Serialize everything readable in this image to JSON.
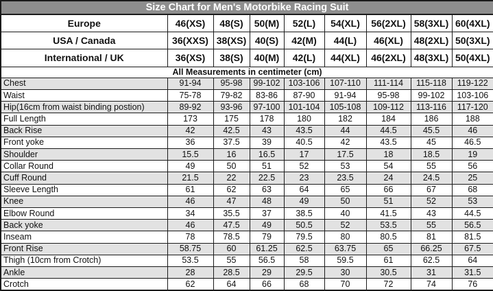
{
  "colors": {
    "title_bg": "#8e8e8e",
    "title_text": "#ffffff",
    "row_shaded": "#e2e2e2",
    "border": "#1b1b1b"
  },
  "chart_data": {
    "type": "table",
    "title": "Size Chart for Men's Motorbike Racing Suit",
    "note": "All Measurements in centimeter (cm)",
    "columns_after_label": 8,
    "size_header_rows": [
      {
        "label": "Europe",
        "values": [
          "46(XS)",
          "48(S)",
          "50(M)",
          "52(L)",
          "54(XL)",
          "56(2XL)",
          "58(3XL)",
          "60(4XL)"
        ]
      },
      {
        "label": "USA / Canada",
        "values": [
          "36(XXS)",
          "38(XS)",
          "40(S)",
          "42(M)",
          "44(L)",
          "46(XL)",
          "48(2XL)",
          "50(3XL)"
        ]
      },
      {
        "label": "International / UK",
        "values": [
          "36(XS)",
          "38(S)",
          "40(M)",
          "42(L)",
          "44(XL)",
          "46(2XL)",
          "48(3XL)",
          "50(4XL)"
        ]
      }
    ],
    "measurement_rows": [
      {
        "label": "Chest",
        "values": [
          "91-94",
          "95-98",
          "99-102",
          "103-106",
          "107-110",
          "111-114",
          "115-118",
          "119-122"
        ]
      },
      {
        "label": "Waist",
        "values": [
          "75-78",
          "79-82",
          "83-86",
          "87-90",
          "91-94",
          "95-98",
          "99-102",
          "103-106"
        ]
      },
      {
        "label": "Hip(16cm from waist binding postion)",
        "values": [
          "89-92",
          "93-96",
          "97-100",
          "101-104",
          "105-108",
          "109-112",
          "113-116",
          "117-120"
        ]
      },
      {
        "label": "Full Length",
        "values": [
          "173",
          "175",
          "178",
          "180",
          "182",
          "184",
          "186",
          "188"
        ]
      },
      {
        "label": "Back Rise",
        "values": [
          "42",
          "42.5",
          "43",
          "43.5",
          "44",
          "44.5",
          "45.5",
          "46"
        ]
      },
      {
        "label": "Front yoke",
        "values": [
          "36",
          "37.5",
          "39",
          "40.5",
          "42",
          "43.5",
          "45",
          "46.5"
        ]
      },
      {
        "label": "Shoulder",
        "values": [
          "15.5",
          "16",
          "16.5",
          "17",
          "17.5",
          "18",
          "18.5",
          "19"
        ]
      },
      {
        "label": "Collar Round",
        "values": [
          "49",
          "50",
          "51",
          "52",
          "53",
          "54",
          "55",
          "56"
        ]
      },
      {
        "label": "Cuff Round",
        "values": [
          "21.5",
          "22",
          "22.5",
          "23",
          "23.5",
          "24",
          "24.5",
          "25"
        ]
      },
      {
        "label": "Sleeve Length",
        "values": [
          "61",
          "62",
          "63",
          "64",
          "65",
          "66",
          "67",
          "68"
        ]
      },
      {
        "label": "Knee",
        "values": [
          "46",
          "47",
          "48",
          "49",
          "50",
          "51",
          "52",
          "53"
        ]
      },
      {
        "label": "Elbow Round",
        "values": [
          "34",
          "35.5",
          "37",
          "38.5",
          "40",
          "41.5",
          "43",
          "44.5"
        ]
      },
      {
        "label": "Back yoke",
        "values": [
          "46",
          "47.5",
          "49",
          "50.5",
          "52",
          "53.5",
          "55",
          "56.5"
        ]
      },
      {
        "label": "Inseam",
        "values": [
          "78",
          "78.5",
          "79",
          "79.5",
          "80",
          "80.5",
          "81",
          "81.5"
        ]
      },
      {
        "label": "Front Rise",
        "values": [
          "58.75",
          "60",
          "61.25",
          "62.5",
          "63.75",
          "65",
          "66.25",
          "67.5"
        ]
      },
      {
        "label": "Thigh (10cm from Crotch)",
        "values": [
          "53.5",
          "55",
          "56.5",
          "58",
          "59.5",
          "61",
          "62.5",
          "64"
        ]
      },
      {
        "label": "Ankle",
        "values": [
          "28",
          "28.5",
          "29",
          "29.5",
          "30",
          "30.5",
          "31",
          "31.5"
        ]
      },
      {
        "label": "Crotch",
        "values": [
          "62",
          "64",
          "66",
          "68",
          "70",
          "72",
          "74",
          "76"
        ]
      }
    ]
  }
}
